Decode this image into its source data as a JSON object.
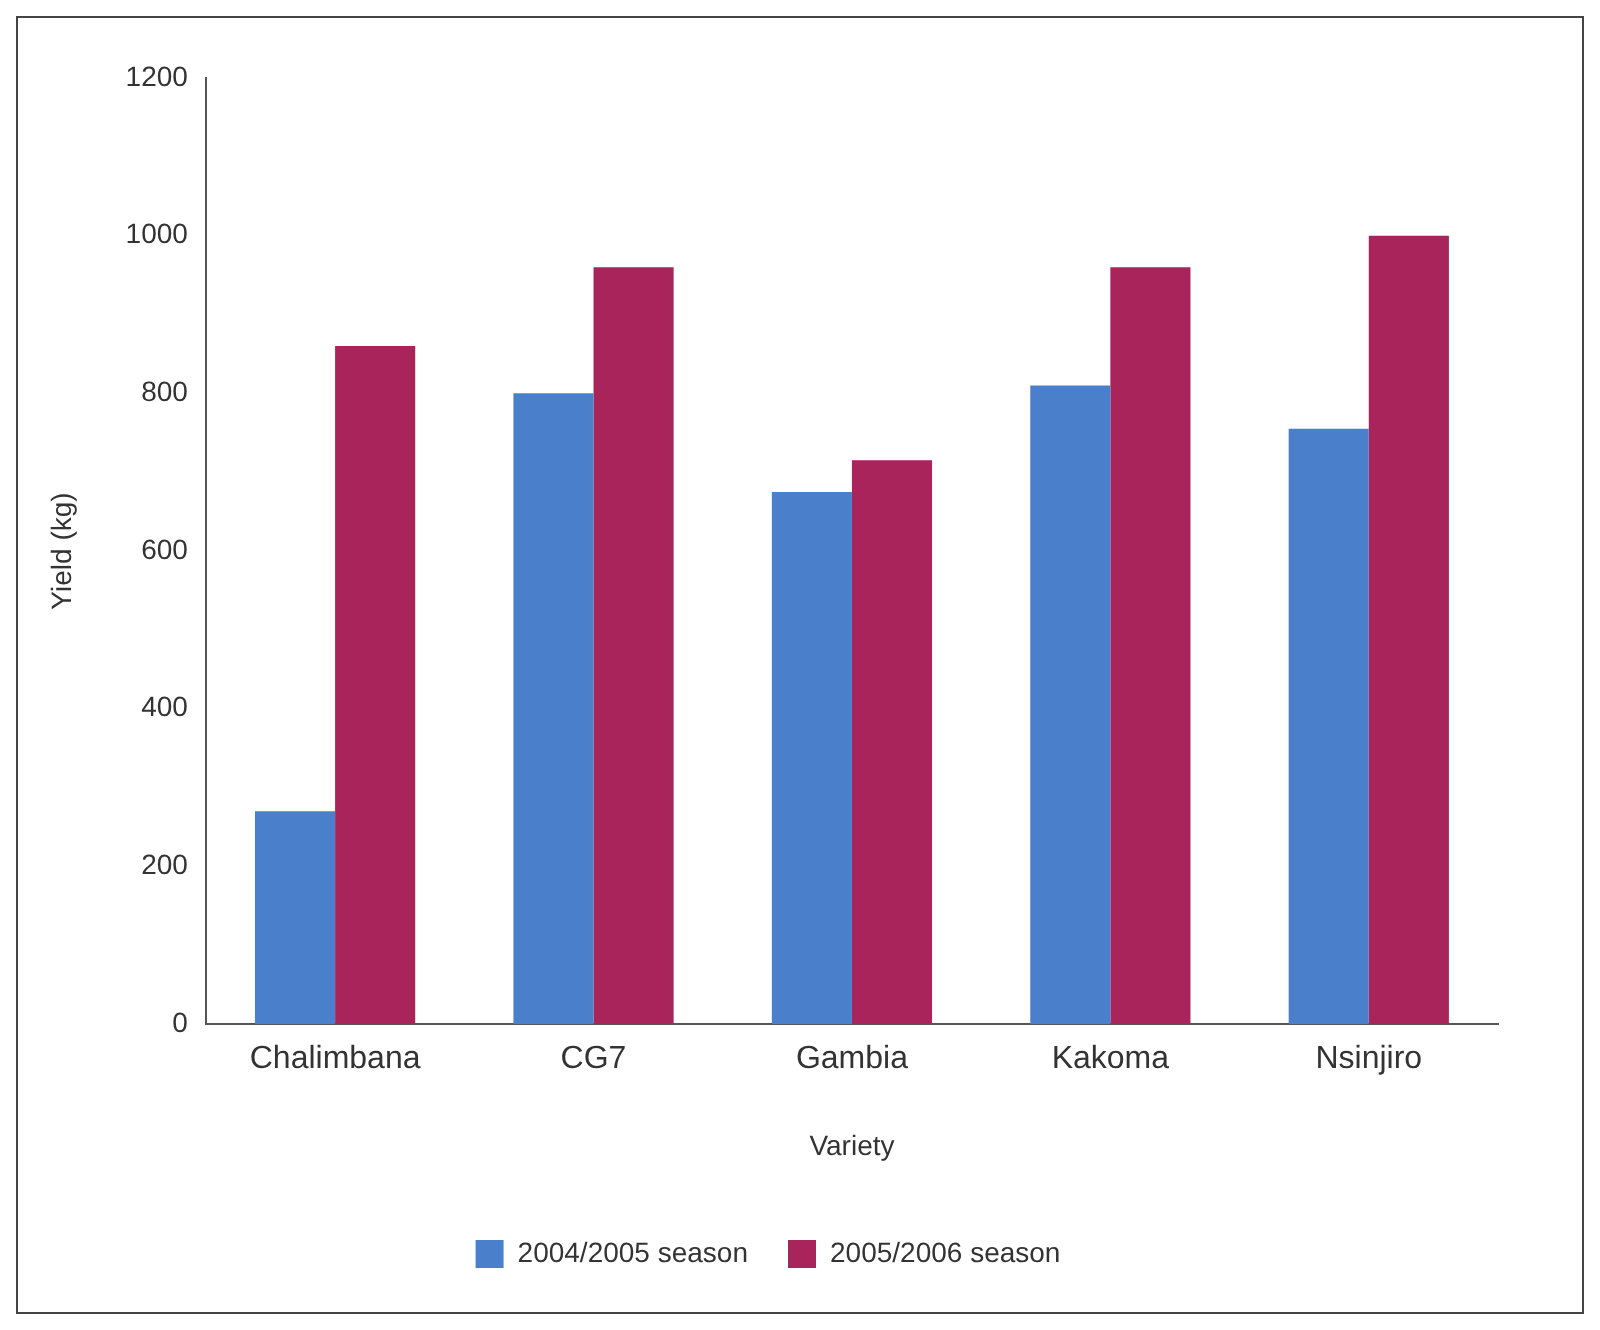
{
  "chart_data": {
    "type": "bar",
    "xlabel": "Variety",
    "ylabel": "Yield (kg)",
    "categories": [
      "Chalimbana",
      "CG7",
      "Gambia",
      "Kakoma",
      "Nsinjiro"
    ],
    "series": [
      {
        "name": "2004/2005 season",
        "color": "#4a7fcc",
        "values": [
          270,
          800,
          675,
          810,
          755
        ]
      },
      {
        "name": "2005/2006 season",
        "color": "#a8245a",
        "values": [
          860,
          960,
          715,
          960,
          1000
        ]
      }
    ],
    "ylim": [
      0,
      1200
    ],
    "yticks": [
      0,
      200,
      400,
      600,
      800,
      1000,
      1200
    ],
    "grid": false,
    "legend": "bottom"
  }
}
